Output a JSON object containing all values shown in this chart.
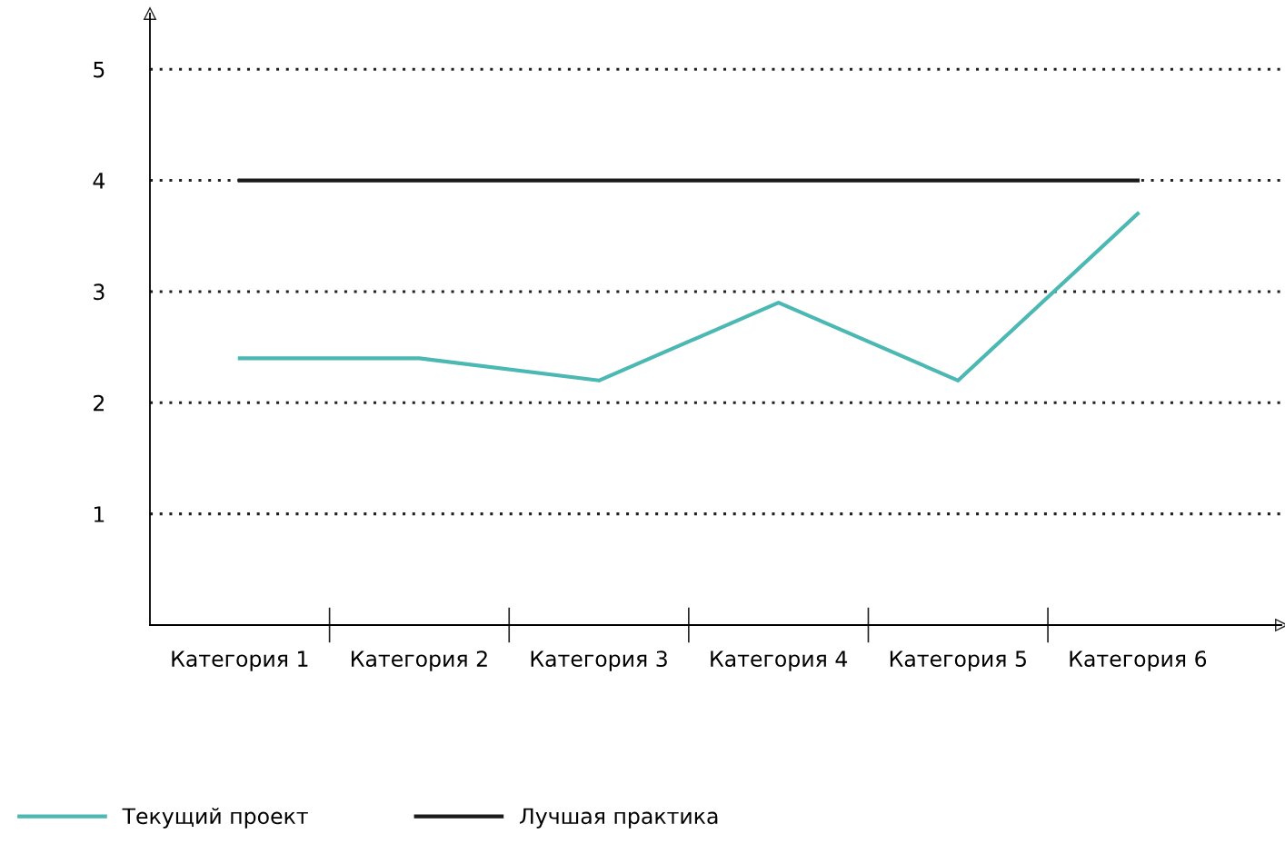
{
  "chart_data": {
    "type": "line",
    "categories": [
      "Категория 1",
      "Категория 2",
      "Категория 3",
      "Категория 4",
      "Категория 5",
      "Категория 6"
    ],
    "series": [
      {
        "name": "Текущий проект",
        "color": "#4bb8b4",
        "values": [
          2.4,
          2.4,
          2.2,
          2.9,
          2.2,
          3.7
        ]
      },
      {
        "name": "Лучшая практика",
        "color": "#1a1a1a",
        "values": [
          4,
          4,
          4,
          4,
          4,
          4
        ]
      }
    ],
    "ylim": [
      0,
      5.5
    ],
    "yticks": [
      1,
      2,
      3,
      4,
      5
    ],
    "grid": "y",
    "legend": "bottom",
    "line_style": "solid",
    "marker": "none"
  }
}
